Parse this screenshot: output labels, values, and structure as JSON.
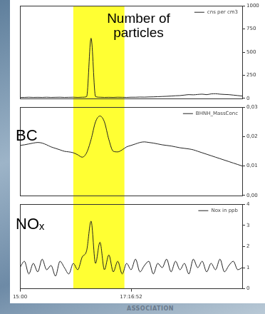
{
  "chart_data": [
    {
      "type": "line",
      "annotation": "Number of particles",
      "series": [
        {
          "name": "cns per cm3",
          "color": "#222222",
          "values": [
            10,
            10,
            12,
            10,
            11,
            10,
            12,
            10,
            11,
            12,
            10,
            11,
            12,
            10,
            12,
            18,
            650,
            20,
            12,
            10,
            11,
            10,
            12,
            11,
            10,
            12,
            12,
            14,
            13,
            15,
            16,
            18,
            20,
            22,
            25,
            28,
            30,
            35,
            40,
            38,
            42,
            45,
            40,
            48,
            50,
            45,
            42,
            40,
            35,
            30,
            25
          ]
        }
      ],
      "x": [
        0,
        2,
        4,
        6,
        8,
        10,
        12,
        14,
        16,
        18,
        20,
        22,
        24,
        26,
        28,
        30,
        32,
        34,
        36,
        38,
        40,
        42,
        44,
        46,
        48,
        50,
        52,
        54,
        56,
        58,
        60,
        62,
        64,
        66,
        68,
        70,
        72,
        74,
        76,
        78,
        80,
        82,
        84,
        86,
        88,
        90,
        92,
        94,
        96,
        98,
        100
      ],
      "xlim": [
        0,
        100
      ],
      "ylim": [
        0,
        1000
      ],
      "yticks": [
        0,
        250,
        500,
        750,
        1000
      ],
      "grid": false,
      "tick_labels": "y",
      "highlight": {
        "range": [
          24,
          47
        ],
        "color": "#ffff33"
      }
    },
    {
      "type": "line",
      "annotation": "BC",
      "series": [
        {
          "name": "BHNH_MassConc",
          "color": "#222222",
          "values": [
            0.017,
            0.0172,
            0.0175,
            0.0178,
            0.018,
            0.0178,
            0.0172,
            0.0165,
            0.016,
            0.0155,
            0.015,
            0.0148,
            0.0145,
            0.0138,
            0.013,
            0.0145,
            0.019,
            0.025,
            0.027,
            0.025,
            0.019,
            0.015,
            0.0148,
            0.0155,
            0.0165,
            0.017,
            0.0175,
            0.018,
            0.0182,
            0.018,
            0.0178,
            0.0175,
            0.0172,
            0.017,
            0.0168,
            0.0165,
            0.0162,
            0.016,
            0.0158,
            0.0155,
            0.015,
            0.0145,
            0.014,
            0.0135,
            0.013,
            0.0125,
            0.012,
            0.0115,
            0.011,
            0.0105,
            0.01
          ]
        }
      ],
      "x": [
        0,
        2,
        4,
        6,
        8,
        10,
        12,
        14,
        16,
        18,
        20,
        22,
        24,
        26,
        28,
        30,
        32,
        34,
        36,
        38,
        40,
        42,
        44,
        46,
        48,
        50,
        52,
        54,
        56,
        58,
        60,
        62,
        64,
        66,
        68,
        70,
        72,
        74,
        76,
        78,
        80,
        82,
        84,
        86,
        88,
        90,
        92,
        94,
        96,
        98,
        100
      ],
      "xlim": [
        0,
        100
      ],
      "ylim": [
        0,
        0.03
      ],
      "yticks": [
        {
          "value": 0,
          "label": "0,00"
        },
        {
          "value": 0.01,
          "label": "0,01"
        },
        {
          "value": 0.02,
          "label": "0,02"
        },
        {
          "value": 0.03,
          "label": "0,03"
        }
      ],
      "grid": false,
      "tick_labels": "y",
      "highlight": {
        "range": [
          24,
          47
        ],
        "color": "#ffff33"
      }
    },
    {
      "type": "line",
      "annotation": "NOₓ",
      "series": [
        {
          "name": "Nox in ppb",
          "color": "#222222",
          "values": [
            1.0,
            1.3,
            0.7,
            1.2,
            0.8,
            1.4,
            0.9,
            1.1,
            0.6,
            1.3,
            1.0,
            0.7,
            1.2,
            0.9,
            1.5,
            1.8,
            3.2,
            1.2,
            2.2,
            0.9,
            1.6,
            0.8,
            1.3,
            0.7,
            1.2,
            0.9,
            1.4,
            0.8,
            1.1,
            1.3,
            0.7,
            1.2,
            1.0,
            1.4,
            0.8,
            1.3,
            0.9,
            1.2,
            0.7,
            1.4,
            1.0,
            1.3,
            0.8,
            1.2,
            0.9,
            1.4,
            0.8,
            1.1,
            1.3,
            0.9,
            1.0
          ]
        }
      ],
      "x": [
        0,
        2,
        4,
        6,
        8,
        10,
        12,
        14,
        16,
        18,
        20,
        22,
        24,
        26,
        28,
        30,
        32,
        34,
        36,
        38,
        40,
        42,
        44,
        46,
        48,
        50,
        52,
        54,
        56,
        58,
        60,
        62,
        64,
        66,
        68,
        70,
        72,
        74,
        76,
        78,
        80,
        82,
        84,
        86,
        88,
        90,
        92,
        94,
        96,
        98,
        100
      ],
      "xlim": [
        0,
        100
      ],
      "ylim": [
        0,
        4
      ],
      "yticks": [
        0,
        1,
        2,
        3,
        4
      ],
      "xticks": [
        {
          "value": 0,
          "label": "15:00"
        },
        {
          "value": 50,
          "label": "17:16:52"
        }
      ],
      "grid": false,
      "highlight": {
        "range": [
          24,
          47
        ],
        "color": "#ffff33"
      }
    }
  ],
  "footer": "ASSOCIATION"
}
